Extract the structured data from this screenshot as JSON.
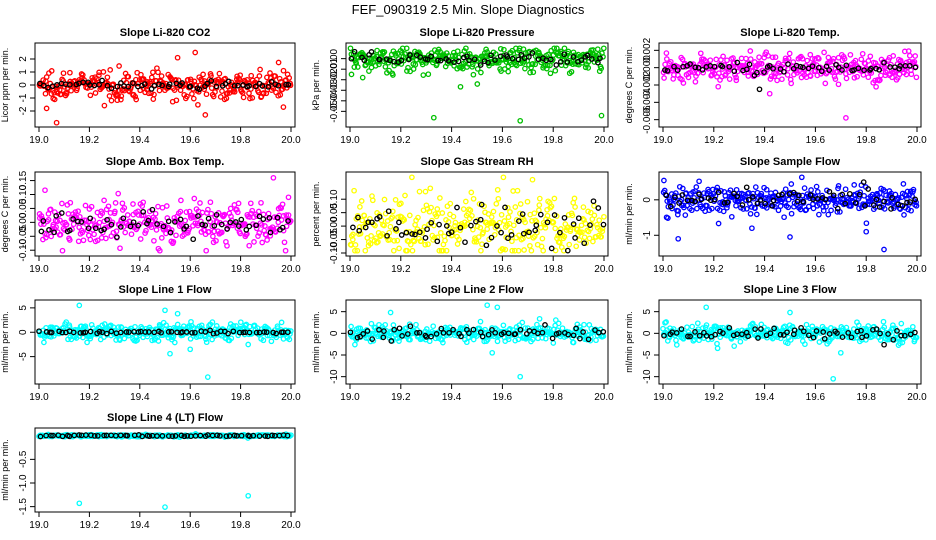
{
  "figure": {
    "title": "FEF_090319  2.5 Min. Slope Diagnostics"
  },
  "chart_data": [
    {
      "type": "scatter",
      "title": "Slope Li-820 CO2",
      "ylabel": "Licor ppm per min.",
      "xlim": [
        19.0,
        20.0
      ],
      "ylim": [
        -3,
        3
      ],
      "xticks": [
        "19.0",
        "19.2",
        "19.4",
        "19.6",
        "19.8",
        "20.0"
      ],
      "yticks": [
        "-2",
        "-1",
        "0",
        "1",
        "2"
      ],
      "series": [
        {
          "color": "#ff0000",
          "spread": 0.55,
          "outliers": [
            [
              19.07,
              -2.9
            ],
            [
              19.03,
              -1.8
            ],
            [
              19.62,
              2.5
            ],
            [
              19.97,
              -1.7
            ],
            [
              19.66,
              -2.3
            ],
            [
              19.55,
              2.1
            ]
          ]
        },
        {
          "color": "#000000",
          "spread": 0.15,
          "outliers": []
        }
      ]
    },
    {
      "type": "scatter",
      "title": "Slope Li-820 Pressure",
      "ylabel": "kPa per min.",
      "xlim": [
        19.0,
        20.0
      ],
      "ylim": [
        -0.062,
        0.012
      ],
      "xticks": [
        "19.0",
        "19.2",
        "19.4",
        "19.6",
        "19.8",
        "20.0"
      ],
      "yticks": [
        "-0.05",
        "-0.04",
        "-0.03",
        "-0.02",
        "-0.01",
        "0.00"
      ],
      "series": [
        {
          "color": "#00c000",
          "spread": 0.007,
          "outliers": [
            [
              19.33,
              -0.056
            ],
            [
              19.67,
              -0.059
            ],
            [
              19.99,
              -0.054
            ],
            [
              19.05,
              -0.018
            ],
            [
              19.88,
              0.006
            ]
          ]
        },
        {
          "color": "#000000",
          "spread": 0.003,
          "outliers": []
        }
      ]
    },
    {
      "type": "scatter",
      "title": "Slope Li-820 Temp.",
      "ylabel": "degrees C per min.",
      "xlim": [
        19.0,
        20.0
      ],
      "ylim": [
        -0.0065,
        0.0025
      ],
      "xticks": [
        "19.0",
        "19.2",
        "19.4",
        "19.6",
        "19.8",
        "20.0"
      ],
      "yticks": [
        "-0.006",
        "-0.004",
        "-0.002",
        "0.000",
        "0.002"
      ],
      "series": [
        {
          "color": "#ff00ff",
          "spread": 0.0009,
          "outliers": [
            [
              19.72,
              -0.0058
            ],
            [
              19.58,
              0.0015
            ],
            [
              19.42,
              -0.003
            ]
          ]
        },
        {
          "color": "#000000",
          "spread": 0.0003,
          "outliers": [
            [
              19.38,
              -0.0025
            ]
          ]
        }
      ]
    },
    {
      "type": "scatter",
      "title": "Slope Amb. Box Temp.",
      "ylabel": "degrees C per min.",
      "xlim": [
        19.0,
        20.0
      ],
      "ylim": [
        -0.11,
        0.17
      ],
      "xticks": [
        "19.0",
        "19.2",
        "19.4",
        "19.6",
        "19.8",
        "20.0"
      ],
      "yticks": [
        "-0.10",
        "-0.05",
        "0.00",
        "0.05",
        "0.10",
        "0.15"
      ],
      "series": [
        {
          "color": "#ff00ff",
          "spread": 0.045,
          "outliers": [
            [
              19.93,
              0.16
            ],
            [
              19.99,
              0.09
            ]
          ]
        },
        {
          "color": "#000000",
          "spread": 0.03,
          "outliers": []
        }
      ]
    },
    {
      "type": "scatter",
      "title": "Slope Gas Stream RH",
      "ylabel": "percent per min.",
      "xlim": [
        19.0,
        20.0
      ],
      "ylim": [
        -0.1,
        0.19
      ],
      "xticks": [
        "19.0",
        "19.2",
        "19.4",
        "19.6",
        "19.8",
        "20.0"
      ],
      "yticks": [
        "-0.10",
        "-0.05",
        "0.00",
        "0.05",
        "0.10"
      ],
      "series": [
        {
          "color": "#ffff00",
          "spread": 0.06,
          "outliers": []
        },
        {
          "color": "#000000",
          "spread": 0.04,
          "outliers": []
        }
      ]
    },
    {
      "type": "scatter",
      "title": "Slope Sample Flow",
      "ylabel": "ml/min per min.",
      "xlim": [
        19.0,
        20.0
      ],
      "ylim": [
        -1.5,
        0.7
      ],
      "xticks": [
        "19.0",
        "19.2",
        "19.4",
        "19.6",
        "19.8",
        "20.0"
      ],
      "yticks": [
        "-1",
        "0"
      ],
      "series": [
        {
          "color": "#0000ff",
          "spread": 0.22,
          "outliers": [
            [
              19.06,
              -1.1
            ],
            [
              19.5,
              -1.05
            ],
            [
              19.87,
              -1.4
            ],
            [
              19.35,
              -0.8
            ],
            [
              19.8,
              -0.9
            ]
          ]
        },
        {
          "color": "#000000",
          "spread": 0.15,
          "outliers": [
            [
              19.79,
              0.5
            ]
          ]
        }
      ]
    },
    {
      "type": "scatter",
      "title": "Slope Line 1 Flow",
      "ylabel": "ml/min per min.",
      "xlim": [
        19.0,
        20.0
      ],
      "ylim": [
        -10,
        6
      ],
      "xticks": [
        "19.0",
        "19.2",
        "19.4",
        "19.6",
        "19.8",
        "20.0"
      ],
      "yticks": [
        "-5",
        "0",
        "5"
      ],
      "series": [
        {
          "color": "#00ffff",
          "spread": 1.0,
          "outliers": [
            [
              19.16,
              5.5
            ],
            [
              19.67,
              -9.2
            ],
            [
              19.52,
              -4.4
            ],
            [
              19.5,
              4.5
            ],
            [
              19.55,
              3.8
            ],
            [
              19.6,
              -3.5
            ]
          ]
        },
        {
          "color": "#000000",
          "spread": 0.15,
          "outliers": []
        }
      ]
    },
    {
      "type": "scatter",
      "title": "Slope Line 2 Flow",
      "ylabel": "ml/min per min.",
      "xlim": [
        19.0,
        20.0
      ],
      "ylim": [
        -11,
        7
      ],
      "xticks": [
        "19.0",
        "19.2",
        "19.4",
        "19.6",
        "19.8",
        "20.0"
      ],
      "yticks": [
        "-10",
        "-5",
        "0",
        "5"
      ],
      "series": [
        {
          "color": "#00ffff",
          "spread": 1.1,
          "outliers": [
            [
              19.67,
              -10.0
            ],
            [
              19.54,
              6.5
            ],
            [
              19.58,
              6.0
            ],
            [
              19.16,
              4.8
            ],
            [
              19.56,
              -4.5
            ]
          ]
        },
        {
          "color": "#000000",
          "spread": 0.8,
          "outliers": []
        }
      ]
    },
    {
      "type": "scatter",
      "title": "Slope Line 3 Flow",
      "ylabel": "ml/min per min.",
      "xlim": [
        19.0,
        20.0
      ],
      "ylim": [
        -11,
        7
      ],
      "xticks": [
        "19.0",
        "19.2",
        "19.4",
        "19.6",
        "19.8",
        "20.0"
      ],
      "yticks": [
        "-10",
        "-5",
        "0",
        "5"
      ],
      "series": [
        {
          "color": "#00ffff",
          "spread": 1.1,
          "outliers": [
            [
              19.67,
              -10.5
            ],
            [
              19.17,
              6.0
            ],
            [
              19.5,
              4.8
            ],
            [
              19.7,
              -4.5
            ]
          ]
        },
        {
          "color": "#000000",
          "spread": 0.8,
          "outliers": []
        }
      ]
    },
    {
      "type": "scatter",
      "title": "Slope Line 4 (LT) Flow",
      "ylabel": "ml/min per min.",
      "xlim": [
        19.0,
        20.0
      ],
      "ylim": [
        -1.55,
        0.1
      ],
      "xticks": [
        "19.0",
        "19.2",
        "19.4",
        "19.6",
        "19.8",
        "20.0"
      ],
      "yticks": [
        "-1.5",
        "-1.0",
        "-0.5"
      ],
      "series": [
        {
          "color": "#00ffff",
          "spread": 0.012,
          "outliers": [
            [
              19.16,
              -1.43
            ],
            [
              19.83,
              -1.27
            ],
            [
              19.5,
              -1.51
            ]
          ]
        },
        {
          "color": "#000000",
          "spread": 0.008,
          "outliers": []
        }
      ]
    }
  ]
}
